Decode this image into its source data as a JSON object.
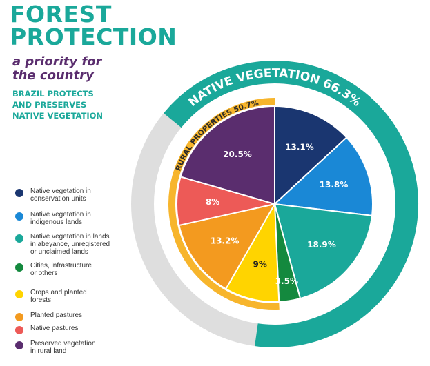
{
  "header": {
    "title_lines": [
      "FOREST",
      "PROTECTION"
    ],
    "subtitle_lines": [
      "a priority for",
      "the country"
    ],
    "kicker_lines": [
      "BRAZIL PROTECTS",
      "AND PRESERVES",
      "NATIVE VEGETATION"
    ]
  },
  "colors": {
    "teal": "#1aa89a",
    "purple": "#5a2d6e",
    "gray_ring": "#dedede",
    "yellow_ring": "#f7b52c"
  },
  "chart_data": {
    "type": "pie",
    "title": "FOREST PROTECTION",
    "unit": "%",
    "slices": [
      {
        "name": "Native vegetation in conservation units",
        "value": 13.1,
        "label": "13.1%",
        "color": "#1a3670"
      },
      {
        "name": "Native vegetation in indigenous lands",
        "value": 13.8,
        "label": "13.8%",
        "color": "#1a88d6"
      },
      {
        "name": "Native vegetation in lands in abeyance, unregistered or unclaimed lands",
        "value": 18.9,
        "label": "18.9%",
        "color": "#1aa89a"
      },
      {
        "name": "Cities, infrastructure or others",
        "value": 3.5,
        "label": "3.5%",
        "color": "#14893e"
      },
      {
        "name": "Crops and planted forests",
        "value": 9,
        "label": "9%",
        "color": "#ffd400"
      },
      {
        "name": "Planted pastures",
        "value": 13.2,
        "label": "13.2%",
        "color": "#f39a1f"
      },
      {
        "name": "Native pastures",
        "value": 8,
        "label": "8%",
        "color": "#ed5a57"
      },
      {
        "name": "Preserved vegetation in rural land",
        "value": 20.5,
        "label": "20.5%",
        "color": "#5a2d6e"
      }
    ],
    "rings": [
      {
        "label": "NATIVE VEGETATION 66.3%",
        "value": 66.3,
        "color": "#1aa89a"
      },
      {
        "label": "RURAL PROPERTIES 50.7%",
        "value": 50.7,
        "color": "#f7b52c"
      }
    ]
  },
  "legend": [
    {
      "lines": [
        "Native vegetation in",
        "conservation units"
      ],
      "color": "#1a3670"
    },
    {
      "lines": [
        "Native vegetation in",
        "indigenous lands"
      ],
      "color": "#1a88d6"
    },
    {
      "lines": [
        "Native vegetation in lands",
        "in abeyance, unregistered",
        "or unclaimed lands"
      ],
      "color": "#1aa89a"
    },
    {
      "lines": [
        "Cities, infrastructure",
        "or others"
      ],
      "color": "#14893e"
    },
    {
      "lines": [
        "Crops and planted",
        "forests"
      ],
      "color": "#ffd400"
    },
    {
      "lines": [
        "Planted pastures"
      ],
      "color": "#f39a1f"
    },
    {
      "lines": [
        "Native pastures"
      ],
      "color": "#ed5a57"
    },
    {
      "lines": [
        "Preserved vegetation",
        "in rural land"
      ],
      "color": "#5a2d6e"
    }
  ]
}
